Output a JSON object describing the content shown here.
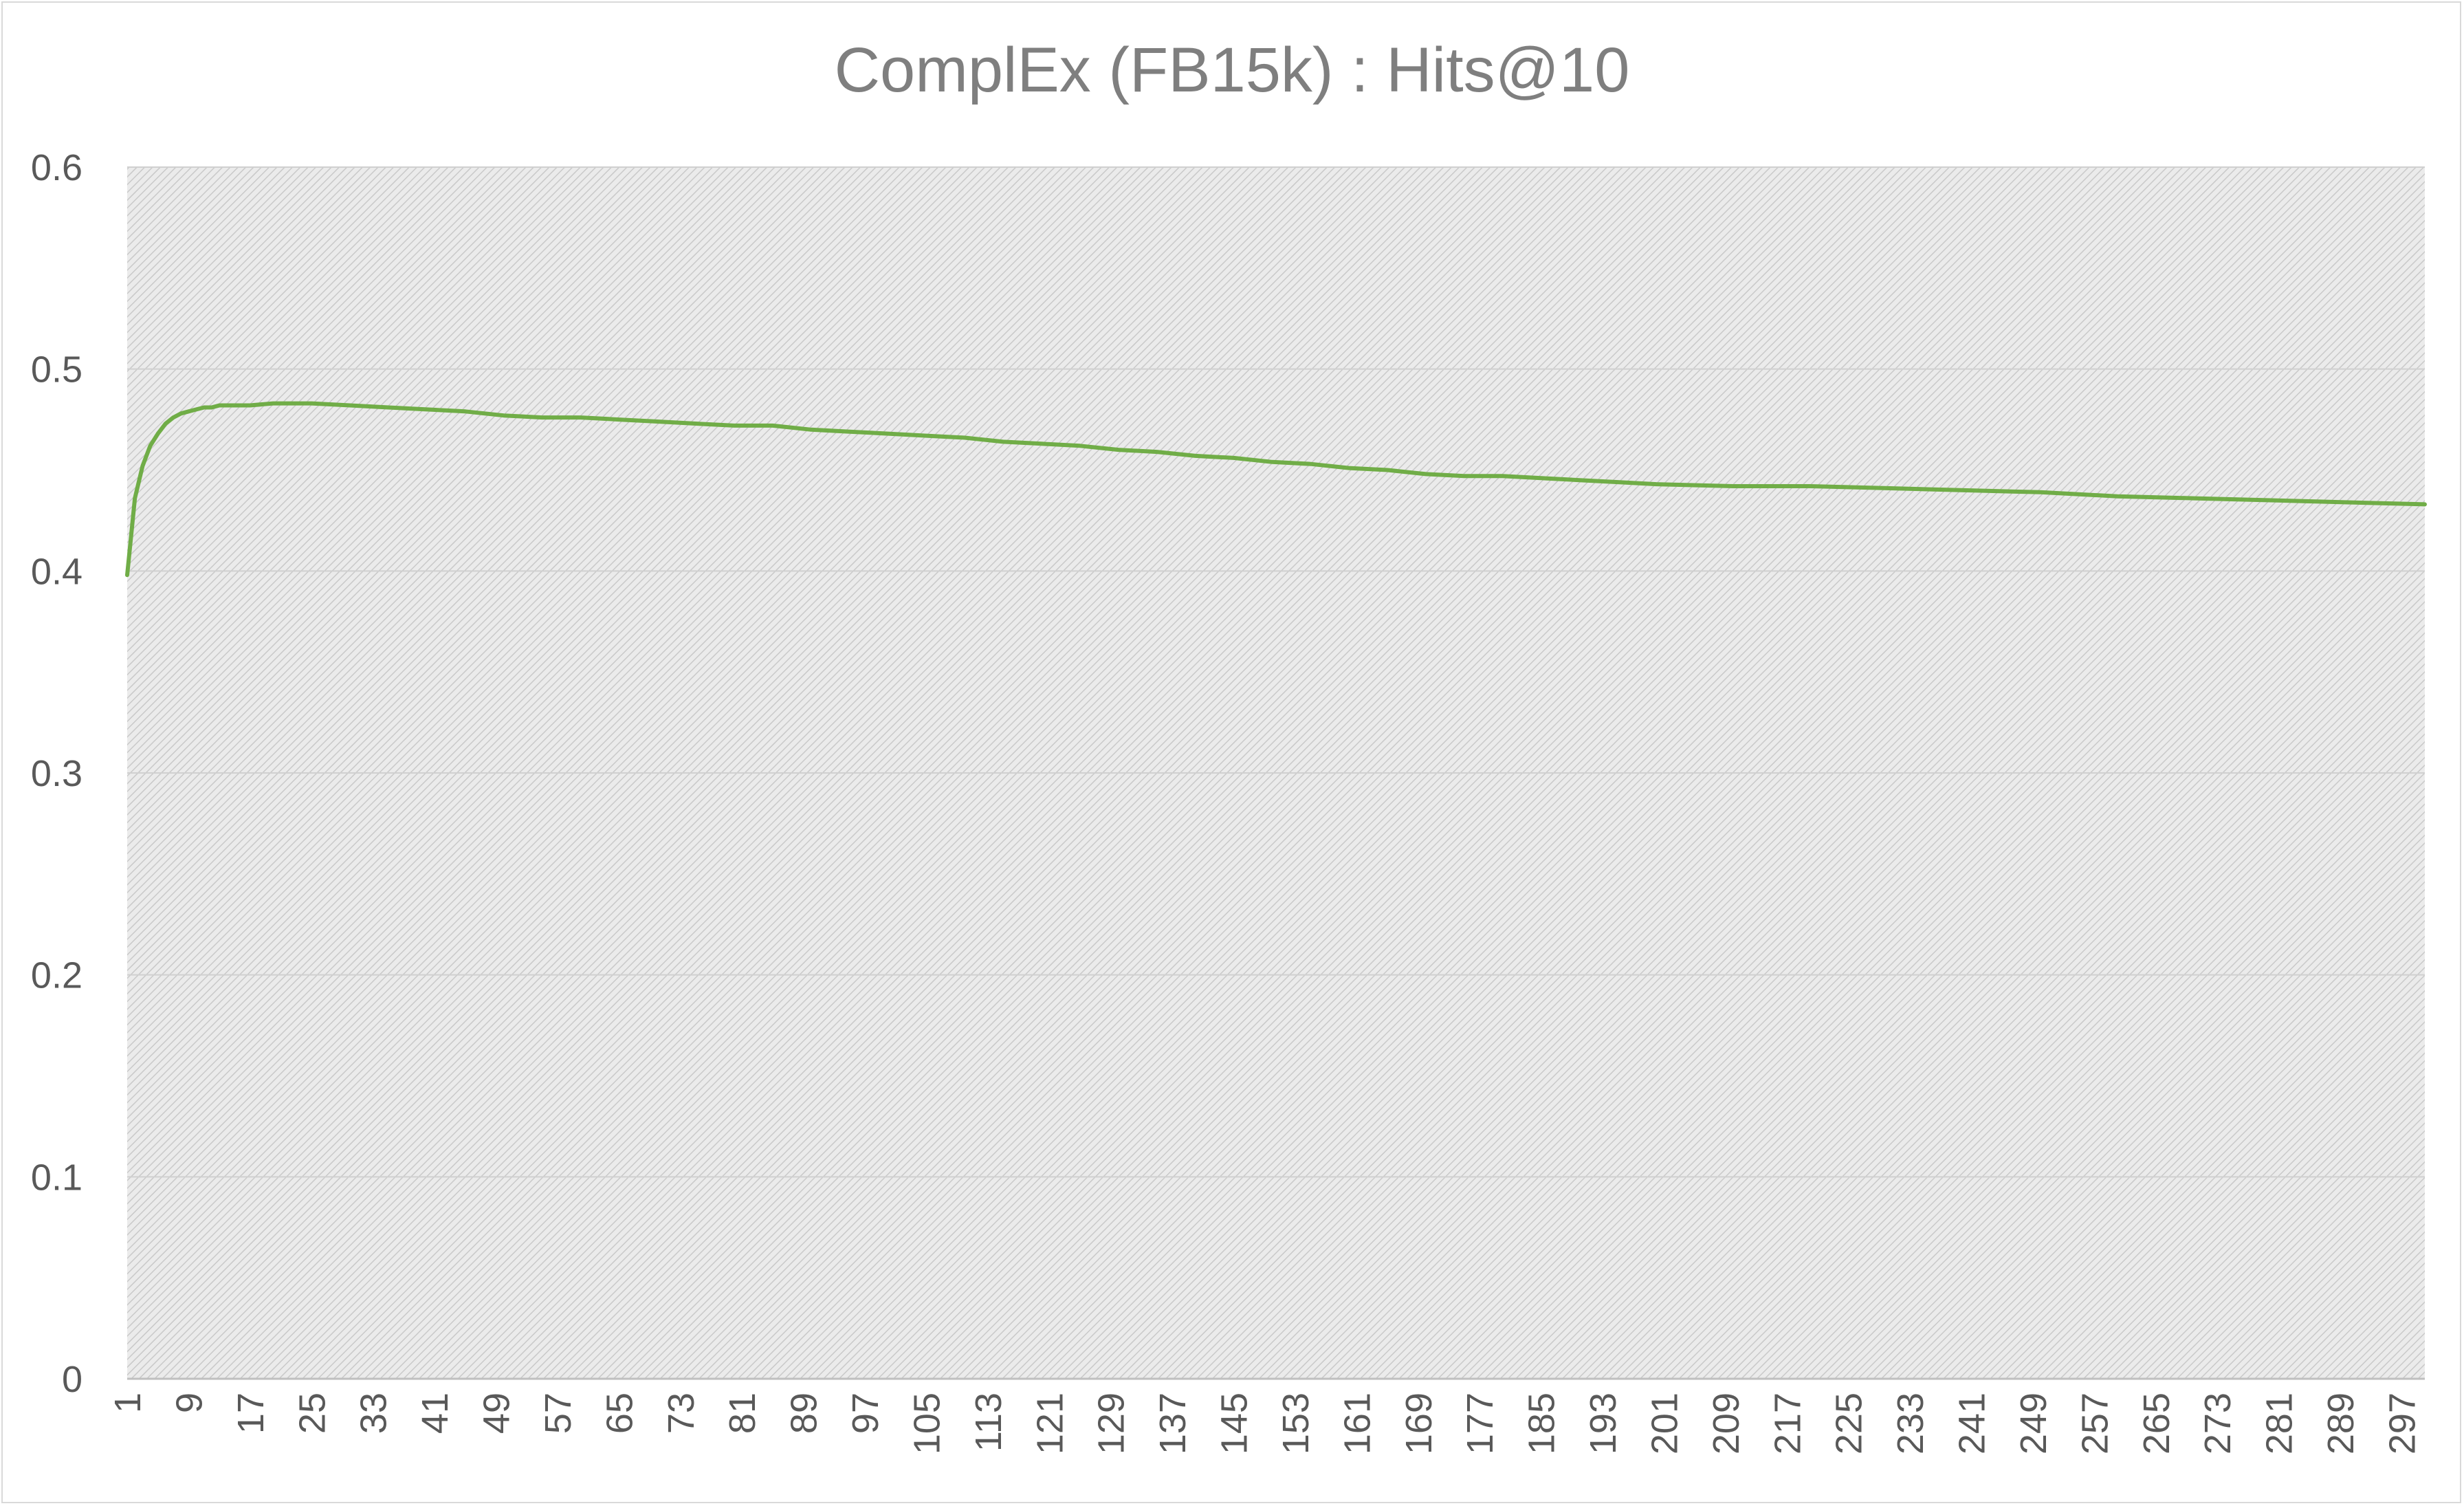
{
  "chart_data": {
    "type": "line",
    "title": "ComplEx (FB15k) : Hits@10",
    "xlabel": "",
    "ylabel": "",
    "ylim": [
      0,
      0.6
    ],
    "yticks": [
      "0",
      "0.1",
      "0.2",
      "0.3",
      "0.4",
      "0.5",
      "0.6"
    ],
    "xlim": [
      1,
      300
    ],
    "xticks": [
      "1",
      "9",
      "17",
      "25",
      "33",
      "41",
      "49",
      "57",
      "65",
      "73",
      "81",
      "89",
      "97",
      "105",
      "113",
      "121",
      "129",
      "137",
      "145",
      "153",
      "161",
      "169",
      "177",
      "185",
      "193",
      "201",
      "209",
      "217",
      "225",
      "233",
      "241",
      "249",
      "257",
      "265",
      "273",
      "281",
      "289",
      "297"
    ],
    "grid": true,
    "legend": "none",
    "colors": {
      "line": "#70ad47",
      "plot_background": "#e2e2e2",
      "gridline": "#d0d0d0"
    },
    "series": [
      {
        "x": [
          1,
          2,
          3,
          4,
          5,
          6,
          7,
          8,
          9,
          10,
          11,
          12,
          13,
          15,
          17,
          20,
          25,
          30,
          35,
          40,
          45,
          50,
          55,
          60,
          65,
          70,
          75,
          80,
          85,
          90,
          95,
          100,
          105,
          110,
          115,
          120,
          125,
          130,
          135,
          140,
          145,
          150,
          155,
          160,
          165,
          170,
          175,
          180,
          185,
          190,
          195,
          200,
          210,
          220,
          230,
          240,
          250,
          260,
          270,
          280,
          290,
          300
        ],
        "values": [
          0.398,
          0.436,
          0.452,
          0.462,
          0.468,
          0.473,
          0.476,
          0.478,
          0.479,
          0.48,
          0.481,
          0.481,
          0.482,
          0.482,
          0.482,
          0.483,
          0.483,
          0.482,
          0.481,
          0.48,
          0.479,
          0.477,
          0.476,
          0.476,
          0.475,
          0.474,
          0.473,
          0.472,
          0.472,
          0.47,
          0.469,
          0.468,
          0.467,
          0.466,
          0.464,
          0.463,
          0.462,
          0.46,
          0.459,
          0.457,
          0.456,
          0.454,
          0.453,
          0.451,
          0.45,
          0.448,
          0.447,
          0.447,
          0.446,
          0.445,
          0.444,
          0.443,
          0.442,
          0.442,
          0.441,
          0.44,
          0.439,
          0.437,
          0.436,
          0.435,
          0.434,
          0.433
        ]
      }
    ]
  }
}
